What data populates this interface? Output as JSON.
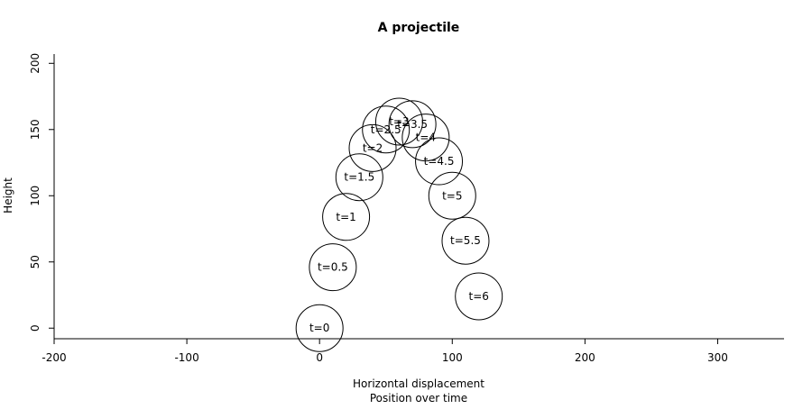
{
  "chart_data": {
    "type": "scatter",
    "title": "A projectile",
    "xlabel": "Horizontal displacement",
    "xlabel_sub": "Position over time",
    "ylabel": "Height",
    "xlim": [
      -200,
      350
    ],
    "ylim": [
      -8,
      207
    ],
    "x_ticks": [
      -200,
      -100,
      0,
      100,
      200,
      300
    ],
    "y_ticks": [
      0,
      50,
      100,
      150,
      200
    ],
    "marker": "open-circle",
    "grid": false,
    "series": [
      {
        "points": [
          {
            "label": "t=0",
            "x": 0,
            "y": 0
          },
          {
            "label": "t=0.5",
            "x": 10,
            "y": 46
          },
          {
            "label": "t=1",
            "x": 20,
            "y": 84
          },
          {
            "label": "t=1.5",
            "x": 30,
            "y": 114
          },
          {
            "label": "t=2",
            "x": 40,
            "y": 136
          },
          {
            "label": "t=2.5",
            "x": 50,
            "y": 150
          },
          {
            "label": "t=3",
            "x": 60,
            "y": 156
          },
          {
            "label": "t=3.5",
            "x": 70,
            "y": 154
          },
          {
            "label": "t=4",
            "x": 80,
            "y": 144
          },
          {
            "label": "t=4.5",
            "x": 90,
            "y": 126
          },
          {
            "label": "t=5",
            "x": 100,
            "y": 100
          },
          {
            "label": "t=5.5",
            "x": 110,
            "y": 66
          },
          {
            "label": "t=6",
            "x": 120,
            "y": 24
          }
        ]
      }
    ]
  }
}
